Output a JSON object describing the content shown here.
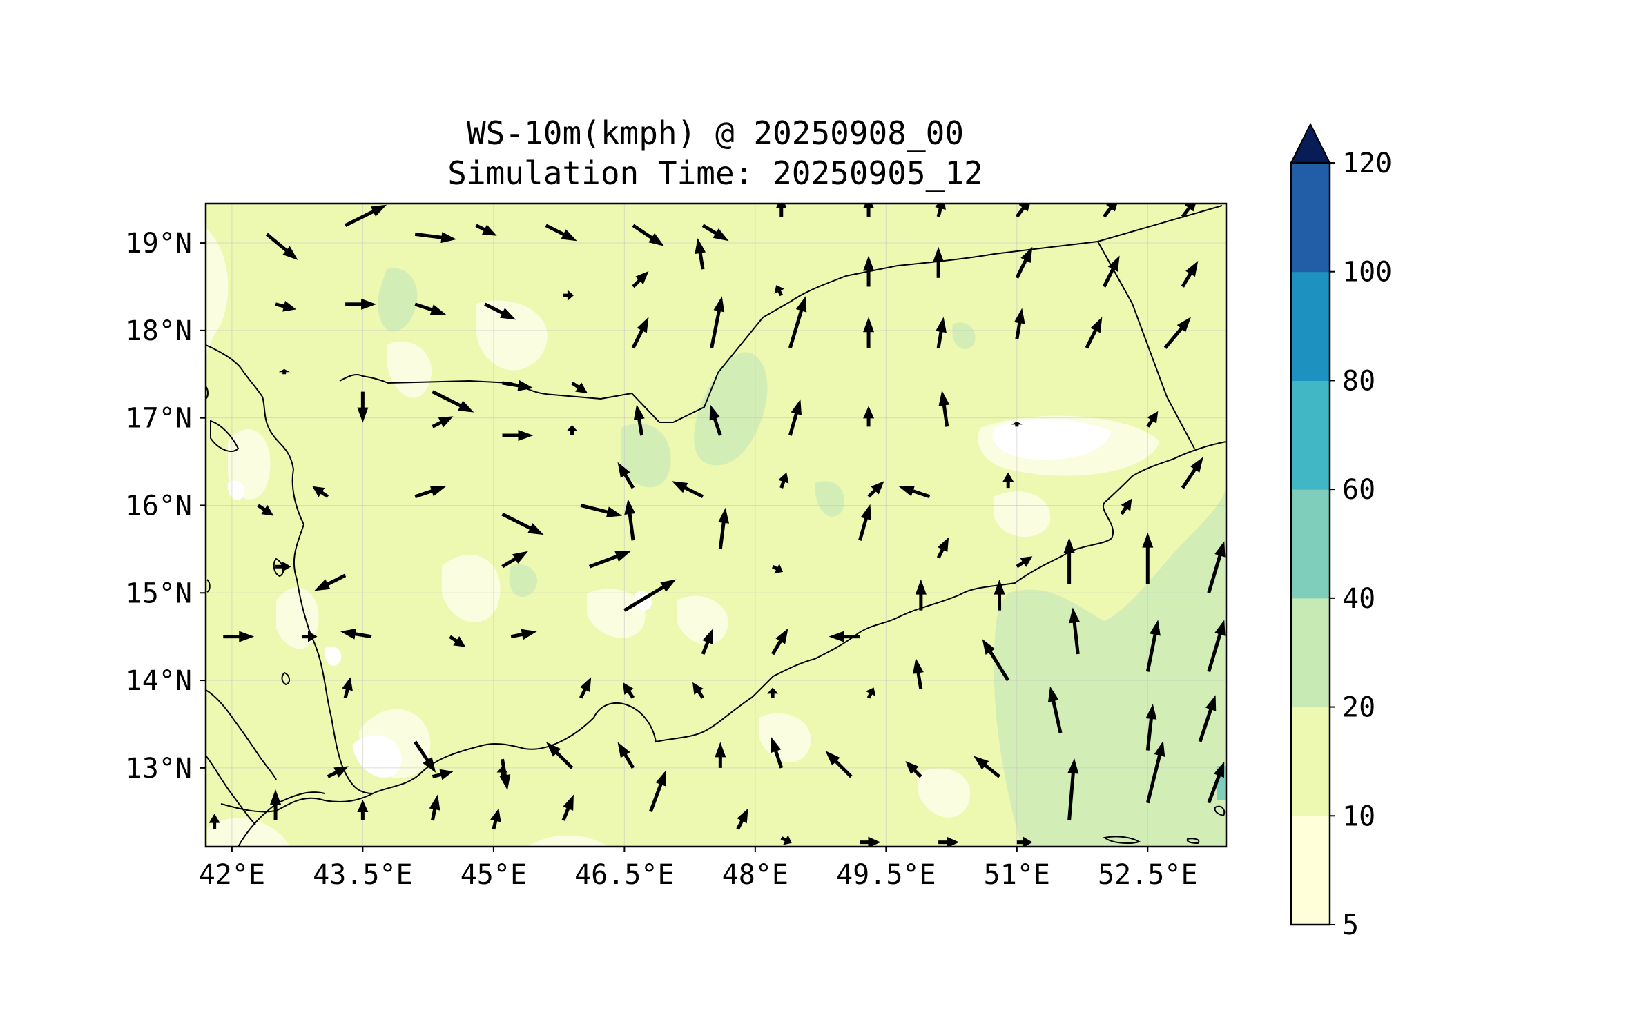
{
  "title": {
    "line1": "WS-10m(kmph) @ 20250908_00",
    "line2": "Simulation Time: 20250905_12"
  },
  "chart_data": {
    "type": "heatmap",
    "variable": "10 m wind speed (kmph) with wind vectors",
    "lon_range": [
      41.7,
      53.4
    ],
    "lat_range": [
      12.1,
      19.45
    ],
    "x_ticks": [
      "42°E",
      "43.5°E",
      "45°E",
      "46.5°E",
      "48°E",
      "49.5°E",
      "51°E",
      "52.5°E"
    ],
    "x_tick_values": [
      42,
      43.5,
      45,
      46.5,
      48,
      49.5,
      51,
      52.5
    ],
    "y_ticks": [
      "19°N",
      "18°N",
      "17°N",
      "16°N",
      "15°N",
      "14°N",
      "13°N"
    ],
    "y_tick_values": [
      19,
      18,
      17,
      16,
      15,
      14,
      13
    ],
    "grid": true,
    "colorbar": {
      "levels": [
        "5",
        "10",
        "20",
        "40",
        "60",
        "80",
        "100",
        "120"
      ],
      "colors": [
        "#ffffd9",
        "#edf8b1",
        "#c7e9b4",
        "#7fcdbb",
        "#41b6c4",
        "#1d91c0",
        "#225ea8",
        "#253494"
      ],
      "extend_color": "#081d58",
      "extend": "max"
    },
    "dominant_speed_classes": [
      {
        "range": "5-10",
        "color": "#ffffd9",
        "where": "patches in west highlands and around 50.5-51.5°E, 16.5-17°N"
      },
      {
        "range": "10-20",
        "color": "#edf8b1",
        "where": "most of the domain"
      },
      {
        "range": "20-40",
        "color": "#c7e9b4",
        "where": "south-east sea area near 51-53°E, 12-15.5°N and patches around 47-48.5°E, 16-17.5°N"
      }
    ],
    "wind_vectors": [
      {
        "lon": 42.4,
        "lat": 19.1,
        "u": 6,
        "v": -5
      },
      {
        "lon": 43.3,
        "lat": 19.2,
        "u": 8,
        "v": 4
      },
      {
        "lon": 44.1,
        "lat": 19.1,
        "u": 8,
        "v": -1
      },
      {
        "lon": 44.8,
        "lat": 19.2,
        "u": 4,
        "v": -2
      },
      {
        "lon": 45.6,
        "lat": 19.2,
        "u": 6,
        "v": -3
      },
      {
        "lon": 46.6,
        "lat": 19.2,
        "u": 6,
        "v": -4
      },
      {
        "lon": 47.4,
        "lat": 19.2,
        "u": 5,
        "v": -3
      },
      {
        "lon": 48.3,
        "lat": 19.3,
        "u": 0,
        "v": 4
      },
      {
        "lon": 49.3,
        "lat": 19.3,
        "u": 0,
        "v": 4
      },
      {
        "lon": 50.1,
        "lat": 19.3,
        "u": 1,
        "v": 4
      },
      {
        "lon": 51.0,
        "lat": 19.3,
        "u": 3,
        "v": 4
      },
      {
        "lon": 52.0,
        "lat": 19.3,
        "u": 3,
        "v": 4
      },
      {
        "lon": 52.9,
        "lat": 19.3,
        "u": 3,
        "v": 4
      },
      {
        "lon": 42.5,
        "lat": 18.3,
        "u": 4,
        "v": -1
      },
      {
        "lon": 43.3,
        "lat": 18.3,
        "u": 6,
        "v": 0
      },
      {
        "lon": 44.1,
        "lat": 18.3,
        "u": 6,
        "v": -2
      },
      {
        "lon": 44.9,
        "lat": 18.3,
        "u": 6,
        "v": -3
      },
      {
        "lon": 45.8,
        "lat": 18.4,
        "u": 2,
        "v": 0
      },
      {
        "lon": 46.6,
        "lat": 18.5,
        "u": 3,
        "v": 3
      },
      {
        "lon": 47.4,
        "lat": 18.7,
        "u": -1,
        "v": 6
      },
      {
        "lon": 48.3,
        "lat": 18.4,
        "u": -1,
        "v": 2
      },
      {
        "lon": 49.3,
        "lat": 18.5,
        "u": 0,
        "v": 6
      },
      {
        "lon": 50.1,
        "lat": 18.6,
        "u": 0,
        "v": 6
      },
      {
        "lon": 51.0,
        "lat": 18.6,
        "u": 3,
        "v": 6
      },
      {
        "lon": 52.0,
        "lat": 18.5,
        "u": 3,
        "v": 6
      },
      {
        "lon": 52.9,
        "lat": 18.5,
        "u": 3,
        "v": 5
      },
      {
        "lon": 42.6,
        "lat": 17.5,
        "u": 0,
        "v": 1
      },
      {
        "lon": 43.5,
        "lat": 17.3,
        "u": 0,
        "v": -6
      },
      {
        "lon": 44.3,
        "lat": 17.3,
        "u": 8,
        "v": -4
      },
      {
        "lon": 45.1,
        "lat": 17.4,
        "u": 6,
        "v": -1
      },
      {
        "lon": 45.9,
        "lat": 17.4,
        "u": 3,
        "v": -2
      },
      {
        "lon": 46.6,
        "lat": 17.8,
        "u": 3,
        "v": 6
      },
      {
        "lon": 47.5,
        "lat": 17.8,
        "u": 2,
        "v": 10
      },
      {
        "lon": 48.4,
        "lat": 17.8,
        "u": 3,
        "v": 10
      },
      {
        "lon": 49.3,
        "lat": 17.8,
        "u": 0,
        "v": 6
      },
      {
        "lon": 50.1,
        "lat": 17.8,
        "u": 1,
        "v": 6
      },
      {
        "lon": 51.0,
        "lat": 17.9,
        "u": 1,
        "v": 6
      },
      {
        "lon": 51.8,
        "lat": 17.8,
        "u": 3,
        "v": 6
      },
      {
        "lon": 52.7,
        "lat": 17.8,
        "u": 5,
        "v": 6
      },
      {
        "lon": 43.5,
        "lat": 16.8,
        "u": 0,
        "v": 0
      },
      {
        "lon": 44.3,
        "lat": 16.9,
        "u": 4,
        "v": 2
      },
      {
        "lon": 45.1,
        "lat": 16.8,
        "u": 6,
        "v": 0
      },
      {
        "lon": 45.9,
        "lat": 16.8,
        "u": 0,
        "v": 2
      },
      {
        "lon": 46.7,
        "lat": 16.8,
        "u": -1,
        "v": 6
      },
      {
        "lon": 47.6,
        "lat": 16.8,
        "u": -2,
        "v": 6
      },
      {
        "lon": 48.4,
        "lat": 16.8,
        "u": 2,
        "v": 7
      },
      {
        "lon": 49.3,
        "lat": 16.9,
        "u": 0,
        "v": 4
      },
      {
        "lon": 50.2,
        "lat": 16.9,
        "u": -1,
        "v": 7
      },
      {
        "lon": 51.0,
        "lat": 16.9,
        "u": 0,
        "v": 1
      },
      {
        "lon": 52.5,
        "lat": 16.9,
        "u": 2,
        "v": 3
      },
      {
        "lon": 42.3,
        "lat": 16.0,
        "u": 3,
        "v": -2
      },
      {
        "lon": 43.1,
        "lat": 16.1,
        "u": -3,
        "v": 2
      },
      {
        "lon": 44.1,
        "lat": 16.1,
        "u": 6,
        "v": 2
      },
      {
        "lon": 45.1,
        "lat": 15.9,
        "u": 8,
        "v": -4
      },
      {
        "lon": 46.0,
        "lat": 16.0,
        "u": 8,
        "v": -2
      },
      {
        "lon": 46.6,
        "lat": 16.2,
        "u": -3,
        "v": 5
      },
      {
        "lon": 47.4,
        "lat": 16.1,
        "u": -6,
        "v": 3
      },
      {
        "lon": 48.3,
        "lat": 16.2,
        "u": 1,
        "v": 3
      },
      {
        "lon": 49.3,
        "lat": 16.1,
        "u": 3,
        "v": 3
      },
      {
        "lon": 50.0,
        "lat": 16.1,
        "u": -6,
        "v": 2
      },
      {
        "lon": 50.9,
        "lat": 16.2,
        "u": 0,
        "v": 3
      },
      {
        "lon": 52.2,
        "lat": 15.9,
        "u": 2,
        "v": 3
      },
      {
        "lon": 52.9,
        "lat": 16.2,
        "u": 4,
        "v": 6
      },
      {
        "lon": 42.5,
        "lat": 15.3,
        "u": 3,
        "v": 0
      },
      {
        "lon": 43.3,
        "lat": 15.2,
        "u": -6,
        "v": -3
      },
      {
        "lon": 45.1,
        "lat": 15.3,
        "u": 5,
        "v": 3
      },
      {
        "lon": 46.1,
        "lat": 15.3,
        "u": 8,
        "v": 3
      },
      {
        "lon": 46.6,
        "lat": 15.6,
        "u": -1,
        "v": 8
      },
      {
        "lon": 47.6,
        "lat": 15.5,
        "u": 1,
        "v": 8
      },
      {
        "lon": 48.2,
        "lat": 15.3,
        "u": 2,
        "v": -1
      },
      {
        "lon": 49.2,
        "lat": 15.6,
        "u": 2,
        "v": 7
      },
      {
        "lon": 50.1,
        "lat": 15.4,
        "u": 2,
        "v": 4
      },
      {
        "lon": 51.0,
        "lat": 15.3,
        "u": 3,
        "v": 2
      },
      {
        "lon": 51.6,
        "lat": 15.1,
        "u": 0,
        "v": 9
      },
      {
        "lon": 52.5,
        "lat": 15.1,
        "u": 0,
        "v": 10
      },
      {
        "lon": 53.2,
        "lat": 15.0,
        "u": 3,
        "v": 10
      },
      {
        "lon": 41.9,
        "lat": 14.5,
        "u": 6,
        "v": 0
      },
      {
        "lon": 42.8,
        "lat": 14.5,
        "u": 3,
        "v": 0
      },
      {
        "lon": 43.6,
        "lat": 14.5,
        "u": -6,
        "v": 1
      },
      {
        "lon": 44.5,
        "lat": 14.5,
        "u": 3,
        "v": -2
      },
      {
        "lon": 45.2,
        "lat": 14.5,
        "u": 5,
        "v": 1
      },
      {
        "lon": 46.5,
        "lat": 14.8,
        "u": 10,
        "v": 6
      },
      {
        "lon": 47.4,
        "lat": 14.3,
        "u": 2,
        "v": 5
      },
      {
        "lon": 48.2,
        "lat": 14.3,
        "u": 3,
        "v": 5
      },
      {
        "lon": 49.2,
        "lat": 14.5,
        "u": -6,
        "v": 0
      },
      {
        "lon": 49.9,
        "lat": 14.8,
        "u": 0,
        "v": 6
      },
      {
        "lon": 50.8,
        "lat": 14.8,
        "u": 0,
        "v": 6
      },
      {
        "lon": 51.7,
        "lat": 14.3,
        "u": -1,
        "v": 9
      },
      {
        "lon": 52.5,
        "lat": 14.1,
        "u": 2,
        "v": 10
      },
      {
        "lon": 53.2,
        "lat": 14.1,
        "u": 3,
        "v": 10
      },
      {
        "lon": 43.3,
        "lat": 13.8,
        "u": 1,
        "v": 4
      },
      {
        "lon": 44.1,
        "lat": 13.3,
        "u": 4,
        "v": -6
      },
      {
        "lon": 45.1,
        "lat": 13.1,
        "u": 1,
        "v": -6
      },
      {
        "lon": 46.0,
        "lat": 13.8,
        "u": 2,
        "v": 4
      },
      {
        "lon": 46.6,
        "lat": 13.8,
        "u": -2,
        "v": 3
      },
      {
        "lon": 47.4,
        "lat": 13.8,
        "u": -2,
        "v": 3
      },
      {
        "lon": 48.2,
        "lat": 13.8,
        "u": 0,
        "v": 2
      },
      {
        "lon": 49.3,
        "lat": 13.8,
        "u": 1,
        "v": 2
      },
      {
        "lon": 49.9,
        "lat": 13.9,
        "u": -1,
        "v": 6
      },
      {
        "lon": 50.9,
        "lat": 14.0,
        "u": -5,
        "v": 8
      },
      {
        "lon": 51.5,
        "lat": 13.4,
        "u": -2,
        "v": 9
      },
      {
        "lon": 52.5,
        "lat": 13.2,
        "u": 1,
        "v": 9
      },
      {
        "lon": 53.1,
        "lat": 13.3,
        "u": 3,
        "v": 9
      },
      {
        "lon": 43.1,
        "lat": 12.9,
        "u": 4,
        "v": 2
      },
      {
        "lon": 44.3,
        "lat": 12.9,
        "u": 4,
        "v": 1
      },
      {
        "lon": 45.1,
        "lat": 12.9,
        "u": 0,
        "v": 2
      },
      {
        "lon": 45.9,
        "lat": 13.0,
        "u": -5,
        "v": 5
      },
      {
        "lon": 46.6,
        "lat": 13.0,
        "u": -3,
        "v": 5
      },
      {
        "lon": 47.6,
        "lat": 13.0,
        "u": 0,
        "v": 5
      },
      {
        "lon": 48.3,
        "lat": 13.0,
        "u": -2,
        "v": 6
      },
      {
        "lon": 49.1,
        "lat": 12.9,
        "u": -5,
        "v": 5
      },
      {
        "lon": 49.9,
        "lat": 12.9,
        "u": -3,
        "v": 3
      },
      {
        "lon": 50.8,
        "lat": 12.9,
        "u": -5,
        "v": 4
      },
      {
        "lon": 51.6,
        "lat": 12.4,
        "u": 1,
        "v": 12
      },
      {
        "lon": 52.5,
        "lat": 12.6,
        "u": 3,
        "v": 12
      },
      {
        "lon": 53.2,
        "lat": 12.6,
        "u": 3,
        "v": 8
      },
      {
        "lon": 42.5,
        "lat": 12.4,
        "u": 0,
        "v": 6
      },
      {
        "lon": 43.5,
        "lat": 12.4,
        "u": 0,
        "v": 4
      },
      {
        "lon": 44.3,
        "lat": 12.4,
        "u": 1,
        "v": 5
      },
      {
        "lon": 45.0,
        "lat": 12.3,
        "u": 1,
        "v": 4
      },
      {
        "lon": 45.8,
        "lat": 12.4,
        "u": 2,
        "v": 5
      },
      {
        "lon": 46.8,
        "lat": 12.5,
        "u": 3,
        "v": 8
      },
      {
        "lon": 47.8,
        "lat": 12.3,
        "u": 2,
        "v": 4
      },
      {
        "lon": 48.3,
        "lat": 12.2,
        "u": 2,
        "v": -1
      },
      {
        "lon": 49.2,
        "lat": 12.15,
        "u": 4,
        "v": 0
      },
      {
        "lon": 50.1,
        "lat": 12.15,
        "u": 4,
        "v": 0
      },
      {
        "lon": 51.0,
        "lat": 12.15,
        "u": 3,
        "v": 0
      },
      {
        "lon": 41.8,
        "lat": 12.3,
        "u": 0,
        "v": 3
      }
    ]
  }
}
